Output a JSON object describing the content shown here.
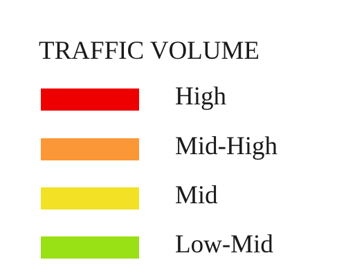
{
  "legend": {
    "title": "TRAFFIC VOLUME",
    "items": [
      {
        "label": "High",
        "color": "#ee0000"
      },
      {
        "label": "Mid-High",
        "color": "#fb9737"
      },
      {
        "label": "Mid",
        "color": "#f2e125"
      },
      {
        "label": "Low-Mid",
        "color": "#99e014"
      }
    ]
  }
}
